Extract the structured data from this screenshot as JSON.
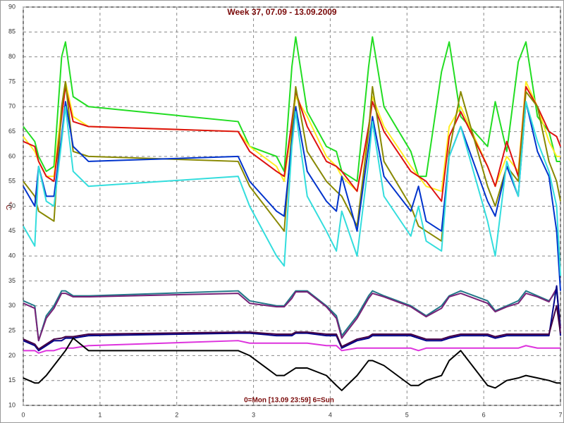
{
  "chart_data": {
    "type": "line",
    "title": "Week 37, 07.09 - 13.09.2009",
    "x_label": "0=Mon [13.09 23:59] 6=Sun",
    "y_label": "°C",
    "xlim": [
      0,
      7
    ],
    "xticks": [
      0,
      1,
      2,
      3,
      4,
      5,
      6,
      7
    ],
    "ylim": [
      10,
      90
    ],
    "yticks": [
      10,
      15,
      20,
      25,
      30,
      35,
      40,
      45,
      50,
      55,
      60,
      65,
      70,
      75,
      80,
      85,
      90
    ],
    "grid": true,
    "x": [
      0,
      0.15,
      0.2,
      0.3,
      0.4,
      0.5,
      0.55,
      0.65,
      0.85,
      2.8,
      2.95,
      3.3,
      3.4,
      3.5,
      3.55,
      3.7,
      3.95,
      4.08,
      4.15,
      4.35,
      4.5,
      4.55,
      4.7,
      5.05,
      5.15,
      5.25,
      5.45,
      5.55,
      5.7,
      6.05,
      6.15,
      6.3,
      6.45,
      6.55,
      6.7,
      6.85,
      6.95,
      7.0
    ],
    "series": [
      {
        "color": "#22dd22",
        "values": [
          66,
          63,
          60,
          57,
          58,
          80,
          83,
          72,
          70,
          67,
          62,
          60,
          57,
          78,
          84,
          69,
          62,
          61,
          57,
          55,
          78,
          84,
          70,
          61,
          56,
          56,
          77,
          83,
          68,
          62,
          71,
          61,
          79,
          83,
          68,
          65,
          59,
          59
        ]
      },
      {
        "color": "#ffee22",
        "values": [
          64,
          61,
          59,
          56,
          56,
          70,
          75,
          68,
          66,
          65,
          62,
          58,
          55,
          66,
          72,
          68,
          60,
          58,
          56,
          53,
          65,
          72,
          66,
          58,
          56,
          54,
          53,
          66,
          70,
          58,
          54,
          60,
          57,
          75,
          70,
          63,
          60,
          60
        ]
      },
      {
        "color": "#dd1111",
        "values": [
          63,
          62,
          59,
          56,
          55,
          68,
          74,
          67,
          66,
          65,
          61,
          57,
          56,
          67,
          73,
          66,
          59,
          58,
          57,
          53,
          66,
          71,
          65,
          57,
          56,
          55,
          51,
          64,
          69,
          58,
          54,
          63,
          56,
          74,
          70,
          65,
          64,
          62
        ]
      },
      {
        "color": "#888800",
        "values": [
          55,
          52,
          49,
          48,
          47,
          70,
          75,
          61,
          60,
          59,
          54,
          47,
          45,
          65,
          74,
          61,
          55,
          53,
          52,
          46,
          65,
          74,
          59,
          50,
          46,
          45,
          43,
          61,
          73,
          54,
          50,
          58,
          55,
          73,
          70,
          59,
          55,
          51
        ]
      },
      {
        "color": "#0033cc",
        "values": [
          54,
          50,
          58,
          52,
          52,
          64,
          71,
          62,
          59,
          60,
          55,
          49,
          48,
          63,
          70,
          57,
          51,
          49,
          56,
          45,
          62,
          68,
          56,
          49,
          54,
          47,
          45,
          60,
          66,
          51,
          48,
          58,
          52,
          71,
          61,
          56,
          45,
          33
        ]
      },
      {
        "color": "#33dddd",
        "values": [
          46,
          42,
          58,
          51,
          50,
          63,
          70,
          57,
          54,
          56,
          50,
          40,
          38,
          62,
          69,
          52,
          45,
          41,
          49,
          40,
          59,
          67,
          52,
          44,
          50,
          43,
          41,
          60,
          66,
          47,
          40,
          59,
          52,
          71,
          63,
          57,
          50,
          36
        ]
      },
      {
        "color": "#227788",
        "values": [
          31,
          30,
          23,
          28,
          30,
          33,
          33,
          32,
          32,
          33,
          31,
          30,
          30,
          32,
          33,
          33,
          30,
          28,
          24,
          28,
          32,
          33,
          32,
          30,
          29,
          28,
          30,
          32,
          33,
          31,
          29,
          30,
          31,
          33,
          32,
          31,
          33,
          26
        ]
      },
      {
        "color": "#772277",
        "values": [
          30.5,
          29.5,
          23,
          27.5,
          29.5,
          32.5,
          32.5,
          31.8,
          31.8,
          32.5,
          30.5,
          29.8,
          29.8,
          31.5,
          32.8,
          32.8,
          29.8,
          27.5,
          23.5,
          27.5,
          31.5,
          32.5,
          31.8,
          29.8,
          28.8,
          27.8,
          29.5,
          31.8,
          32.5,
          30.5,
          28.8,
          29.8,
          30.5,
          32.5,
          31.8,
          30.8,
          33.5,
          25.5
        ]
      },
      {
        "color": "#000088",
        "values": [
          23,
          22,
          21,
          22,
          23,
          23,
          23.5,
          23.5,
          24,
          24.5,
          24.5,
          24,
          24,
          24,
          24.5,
          24.5,
          24,
          24,
          21.5,
          23,
          23.5,
          24,
          24,
          24,
          23.5,
          23,
          23,
          23.5,
          24,
          24,
          23.5,
          24,
          24,
          24,
          24,
          24,
          34,
          24
        ]
      },
      {
        "color": "#440044",
        "values": [
          23.3,
          22.3,
          21.3,
          22.3,
          23.3,
          23.5,
          23.8,
          23.8,
          24.3,
          24.7,
          24.7,
          24.3,
          24.3,
          24.3,
          24.7,
          24.7,
          24.3,
          24.3,
          21.8,
          23.3,
          23.8,
          24.3,
          24.3,
          24.3,
          23.8,
          23.3,
          23.3,
          23.8,
          24.3,
          24.3,
          23.8,
          24.3,
          24.3,
          24.3,
          24.3,
          24.3,
          30,
          24.5
        ]
      },
      {
        "color": "#dd33dd",
        "values": [
          21,
          21,
          20.5,
          21,
          21,
          21.5,
          21.5,
          21.5,
          22,
          23,
          22.5,
          22.5,
          22.5,
          22.5,
          22.5,
          22.5,
          22,
          22,
          21,
          21.5,
          21.5,
          21.5,
          21.5,
          21.5,
          21,
          21.5,
          21.5,
          21.5,
          21.5,
          21.5,
          21.5,
          21.5,
          21.5,
          22,
          21.5,
          21.5,
          21.5,
          21.5
        ]
      },
      {
        "color": "#000000",
        "values": [
          15.5,
          14.5,
          14.5,
          16,
          18,
          20,
          21,
          23.5,
          21,
          21,
          20,
          16,
          16,
          17,
          17.5,
          17.5,
          16,
          14,
          13,
          16,
          19,
          19,
          18,
          14,
          14,
          15,
          16,
          19,
          21,
          14,
          13.5,
          15,
          15.5,
          16,
          15.5,
          15,
          14.5,
          14.5
        ]
      }
    ]
  }
}
